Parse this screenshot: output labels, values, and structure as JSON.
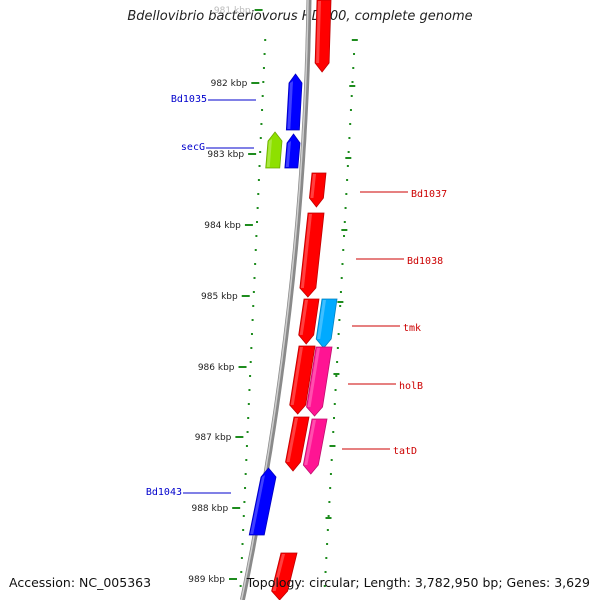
{
  "title": "Bdellovibrio bacteriovorus HD100, complete genome",
  "accession": "Accession: NC_005363",
  "topology": "Topology: circular; Length: 3,782,950 bp; Genes: 3,629",
  "ticks": [
    "981 kbp",
    "982 kbp",
    "983 kbp",
    "984 kbp",
    "985 kbp",
    "986 kbp",
    "987 kbp",
    "988 kbp",
    "989 kbp"
  ],
  "genes": [
    {
      "label": "",
      "strand": "forward",
      "color": "#ff0000"
    },
    {
      "label": "Bd1035",
      "strand": "reverse",
      "color": "#0000ff"
    },
    {
      "label": "secG",
      "strand": "reverse",
      "color": "#8ee000"
    },
    {
      "label": "",
      "strand": "reverse",
      "color": "#0000ff"
    },
    {
      "label": "Bd1037",
      "strand": "forward",
      "color": "#ff0000"
    },
    {
      "label": "Bd1038",
      "strand": "forward",
      "color": "#ff0000"
    },
    {
      "label": "tmk",
      "strand": "forward",
      "color": "#00aaff"
    },
    {
      "label": "",
      "strand": "forward",
      "color": "#ff0000"
    },
    {
      "label": "holB",
      "strand": "forward",
      "color": "#ff1493"
    },
    {
      "label": "",
      "strand": "forward",
      "color": "#ff0000"
    },
    {
      "label": "tatD",
      "strand": "forward",
      "color": "#ff1493"
    },
    {
      "label": "",
      "strand": "forward",
      "color": "#ff0000"
    },
    {
      "label": "Bd1043",
      "strand": "reverse",
      "color": "#0000ff"
    },
    {
      "label": "",
      "strand": "forward",
      "color": "#ff0000"
    }
  ],
  "colors": {
    "backbone": "#8a8a8a",
    "dots": "#1e8c1e",
    "forward_label": "#cc0000",
    "reverse_label": "#0000cc"
  }
}
